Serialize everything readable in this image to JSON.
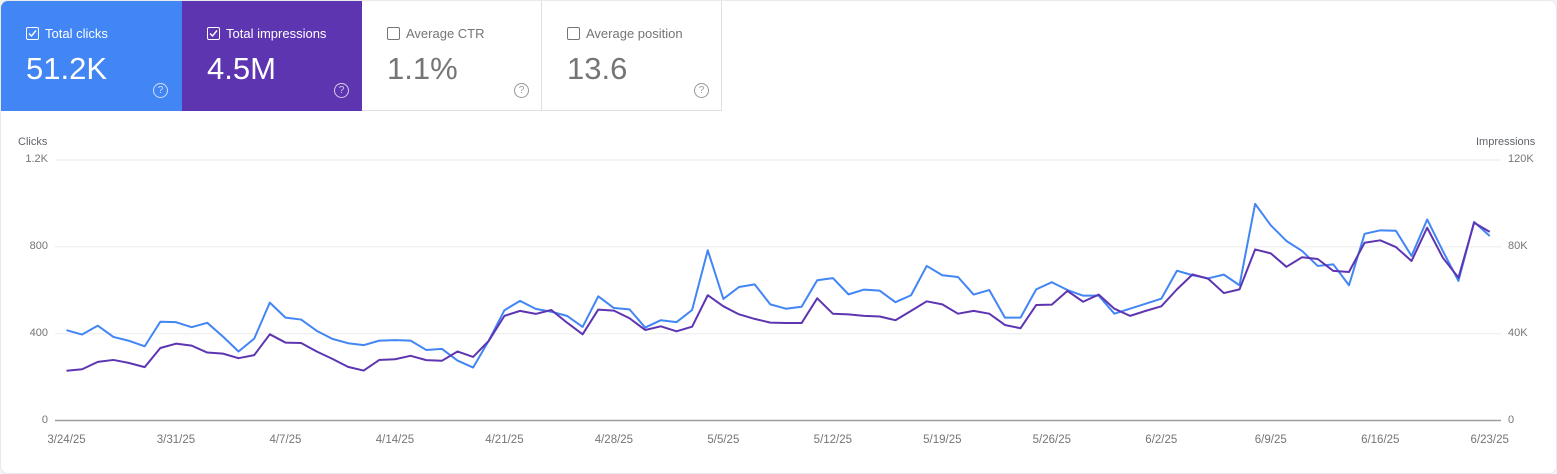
{
  "metrics": [
    {
      "label": "Total clicks",
      "value": "51.2K",
      "checked": true,
      "color": "#4285f4"
    },
    {
      "label": "Total impressions",
      "value": "4.5M",
      "checked": true,
      "color": "#5e35b1"
    },
    {
      "label": "Average CTR",
      "value": "1.1%",
      "checked": false,
      "color": "#ffffff"
    },
    {
      "label": "Average position",
      "value": "13.6",
      "checked": false,
      "color": "#ffffff"
    }
  ],
  "help_icon": "question-circle-icon",
  "chart_data": {
    "type": "line",
    "left_axis": {
      "label": "Clicks",
      "ticks": [
        "0",
        "400",
        "800",
        "1.2K"
      ],
      "range": [
        0,
        1200
      ]
    },
    "right_axis": {
      "label": "Impressions",
      "ticks": [
        "0",
        "40K",
        "80K",
        "120K"
      ],
      "range": [
        0,
        120000
      ]
    },
    "x_ticks": [
      "3/24/25",
      "3/31/25",
      "4/7/25",
      "4/14/25",
      "4/21/25",
      "4/28/25",
      "5/5/25",
      "5/12/25",
      "5/19/25",
      "5/26/25",
      "6/2/25",
      "6/9/25",
      "6/16/25",
      "6/23/25"
    ],
    "grid": true,
    "x": [
      "3/24/25",
      "3/25/25",
      "3/26/25",
      "3/27/25",
      "3/28/25",
      "3/29/25",
      "3/30/25",
      "3/31/25",
      "4/1/25",
      "4/2/25",
      "4/3/25",
      "4/4/25",
      "4/5/25",
      "4/6/25",
      "4/7/25",
      "4/8/25",
      "4/9/25",
      "4/10/25",
      "4/11/25",
      "4/12/25",
      "4/13/25",
      "4/14/25",
      "4/15/25",
      "4/16/25",
      "4/17/25",
      "4/18/25",
      "4/19/25",
      "4/20/25",
      "4/21/25",
      "4/22/25",
      "4/23/25",
      "4/24/25",
      "4/25/25",
      "4/26/25",
      "4/27/25",
      "4/28/25",
      "4/29/25",
      "4/30/25",
      "5/1/25",
      "5/2/25",
      "5/3/25",
      "5/4/25",
      "5/5/25",
      "5/6/25",
      "5/7/25",
      "5/8/25",
      "5/9/25",
      "5/10/25",
      "5/11/25",
      "5/12/25",
      "5/13/25",
      "5/14/25",
      "5/15/25",
      "5/16/25",
      "5/17/25",
      "5/18/25",
      "5/19/25",
      "5/20/25",
      "5/21/25",
      "5/22/25",
      "5/23/25",
      "5/24/25",
      "5/25/25",
      "5/26/25",
      "5/27/25",
      "5/28/25",
      "5/29/25",
      "5/30/25",
      "5/31/25",
      "6/1/25",
      "6/2/25",
      "6/3/25",
      "6/4/25",
      "6/5/25",
      "6/6/25",
      "6/7/25",
      "6/8/25",
      "6/9/25",
      "6/10/25",
      "6/11/25",
      "6/12/25",
      "6/13/25",
      "6/14/25",
      "6/15/25",
      "6/16/25",
      "6/17/25",
      "6/18/25",
      "6/19/25",
      "6/20/25",
      "6/21/25",
      "6/22/25",
      "6/23/25"
    ],
    "series": [
      {
        "name": "Clicks",
        "axis": "left",
        "color": "#4285f4",
        "values": [
          416,
          396,
          437,
          385,
          367,
          342,
          455,
          453,
          430,
          450,
          387,
          318,
          377,
          543,
          474,
          465,
          413,
          376,
          356,
          347,
          368,
          370,
          368,
          325,
          330,
          276,
          244,
          368,
          508,
          551,
          514,
          501,
          482,
          431,
          572,
          518,
          512,
          428,
          462,
          453,
          509,
          784,
          560,
          615,
          627,
          535,
          515,
          524,
          646,
          656,
          581,
          603,
          598,
          545,
          577,
          712,
          669,
          661,
          580,
          601,
          474,
          474,
          604,
          637,
          601,
          575,
          575,
          492,
          515,
          538,
          561,
          690,
          669,
          655,
          672,
          623,
          998,
          899,
          827,
          781,
          712,
          719,
          623,
          860,
          876,
          874,
          758,
          926,
          781,
          643,
          915,
          850
        ]
      },
      {
        "name": "Impressions",
        "axis": "right",
        "color": "#5e35b1",
        "values": [
          22900,
          23600,
          27000,
          27900,
          26500,
          24600,
          33400,
          35400,
          34500,
          31300,
          30800,
          28700,
          30100,
          39700,
          35900,
          35700,
          31800,
          28400,
          24700,
          23000,
          27900,
          28200,
          29800,
          27800,
          27500,
          31800,
          29300,
          36700,
          48200,
          50500,
          49100,
          50900,
          45100,
          39700,
          51100,
          50600,
          47100,
          41700,
          43400,
          41100,
          43200,
          57700,
          52600,
          48900,
          46800,
          45100,
          44900,
          44900,
          56300,
          49200,
          48900,
          48200,
          47900,
          46200,
          50500,
          54900,
          53500,
          49200,
          50500,
          49200,
          44000,
          42500,
          53200,
          53400,
          59700,
          54700,
          58000,
          51500,
          48200,
          50500,
          52600,
          60400,
          67300,
          65300,
          58700,
          60400,
          78800,
          77000,
          70800,
          75200,
          74400,
          68900,
          68400,
          81900,
          83000,
          79900,
          73500,
          88800,
          75000,
          65800,
          91100,
          86900
        ]
      }
    ]
  }
}
